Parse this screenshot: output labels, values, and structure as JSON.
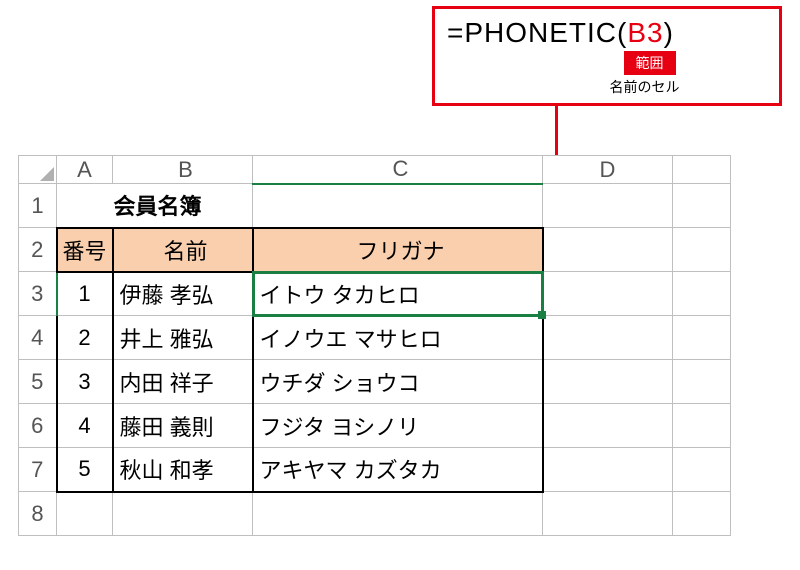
{
  "callout": {
    "formula_prefix": "=PHONETIC(",
    "formula_arg": "B3",
    "formula_suffix": ")",
    "label_text": "範囲",
    "sub_text": "名前のセル",
    "border_color": "#e60012",
    "label_bg": "#e60012",
    "arg1_color": "#e60012"
  },
  "sheet": {
    "columns": [
      "A",
      "B",
      "C",
      "D",
      ""
    ],
    "col_widths": {
      "A": 56,
      "B": 140,
      "C": 290,
      "D": 130,
      "E": 58
    },
    "header_bg": "#f9cfae",
    "selection_color": "#1a7f43",
    "selected_cell": "C3",
    "title": "会員名簿",
    "headers": {
      "A": "番号",
      "B": "名前",
      "C": "フリガナ"
    },
    "rows": [
      {
        "num": "1",
        "name": "伊藤 孝弘",
        "kana": "イトウ タカヒロ"
      },
      {
        "num": "2",
        "name": "井上 雅弘",
        "kana": "イノウエ マサヒロ"
      },
      {
        "num": "3",
        "name": "内田 祥子",
        "kana": "ウチダ ショウコ"
      },
      {
        "num": "4",
        "name": "藤田 義則",
        "kana": "フジタ ヨシノリ"
      },
      {
        "num": "5",
        "name": "秋山 和孝",
        "kana": "アキヤマ カズタカ"
      }
    ],
    "row_labels": [
      "1",
      "2",
      "3",
      "4",
      "5",
      "6",
      "7",
      "8"
    ]
  }
}
